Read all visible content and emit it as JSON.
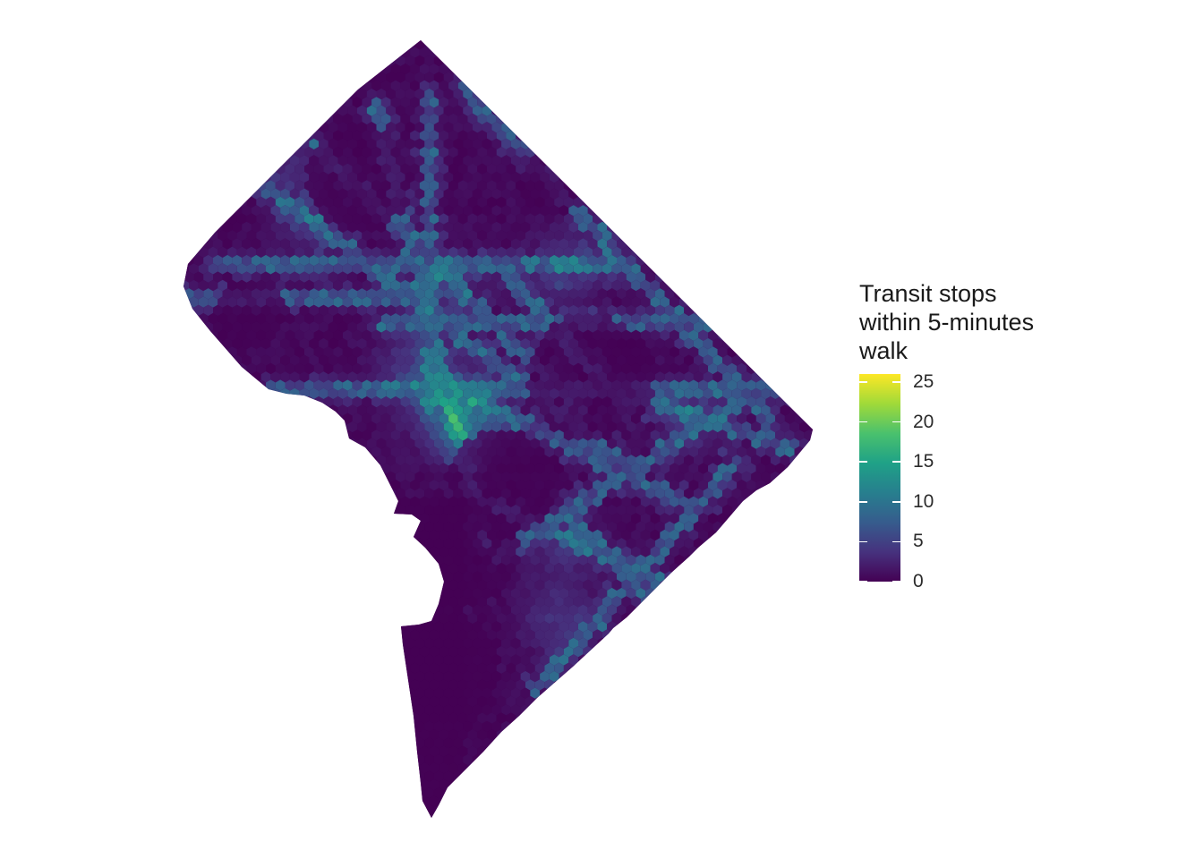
{
  "map": {
    "region": "hex-binned city map",
    "palette": [
      "#440154",
      "#46327e",
      "#365c8d",
      "#277f8e",
      "#1fa187",
      "#4ac16d",
      "#a0da39",
      "#fde725"
    ],
    "value_range": [
      0,
      26
    ],
    "background": "#ffffff"
  },
  "legend": {
    "title_lines": [
      "Transit stops",
      "within 5-minutes",
      "walk"
    ],
    "ticks": [
      {
        "value": 25,
        "label": "25"
      },
      {
        "value": 20,
        "label": "20"
      },
      {
        "value": 15,
        "label": "15"
      },
      {
        "value": 10,
        "label": "10"
      },
      {
        "value": 5,
        "label": "5"
      },
      {
        "value": 0,
        "label": "0"
      }
    ]
  }
}
